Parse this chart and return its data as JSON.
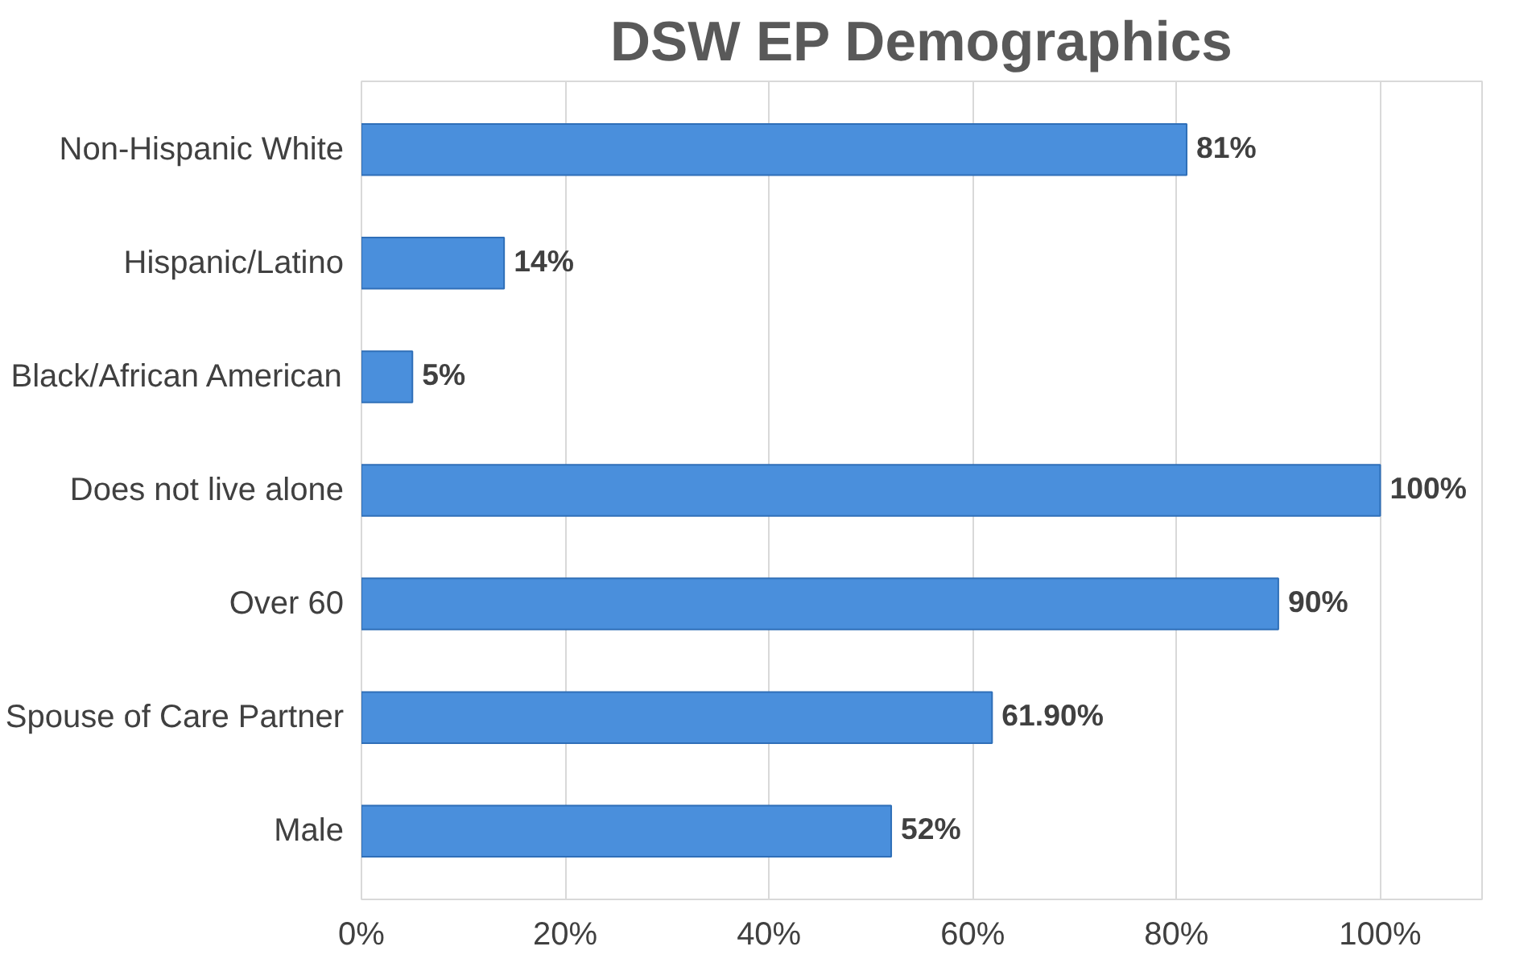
{
  "chart_data": {
    "type": "bar",
    "orientation": "horizontal",
    "title": "DSW EP Demographics",
    "categories": [
      "Non-Hispanic White",
      "Hispanic/Latino",
      "Black/African American",
      "Does not live alone",
      "Over 60",
      "Spouse of Care Partner",
      "Male"
    ],
    "values": [
      81,
      14,
      5,
      100,
      90,
      61.9,
      52
    ],
    "value_labels": [
      "81%",
      "14%",
      "5%",
      "100%",
      "90%",
      "61.90%",
      "52%"
    ],
    "color": "#4a8fdc",
    "xlim": [
      0,
      110
    ],
    "xticks": [
      {
        "value": 0,
        "label": "0%"
      },
      {
        "value": 20,
        "label": "20%"
      },
      {
        "value": 40,
        "label": "40%"
      },
      {
        "value": 60,
        "label": "60%"
      },
      {
        "value": 80,
        "label": "80%"
      },
      {
        "value": 100,
        "label": "100%"
      }
    ],
    "grid": "x"
  }
}
